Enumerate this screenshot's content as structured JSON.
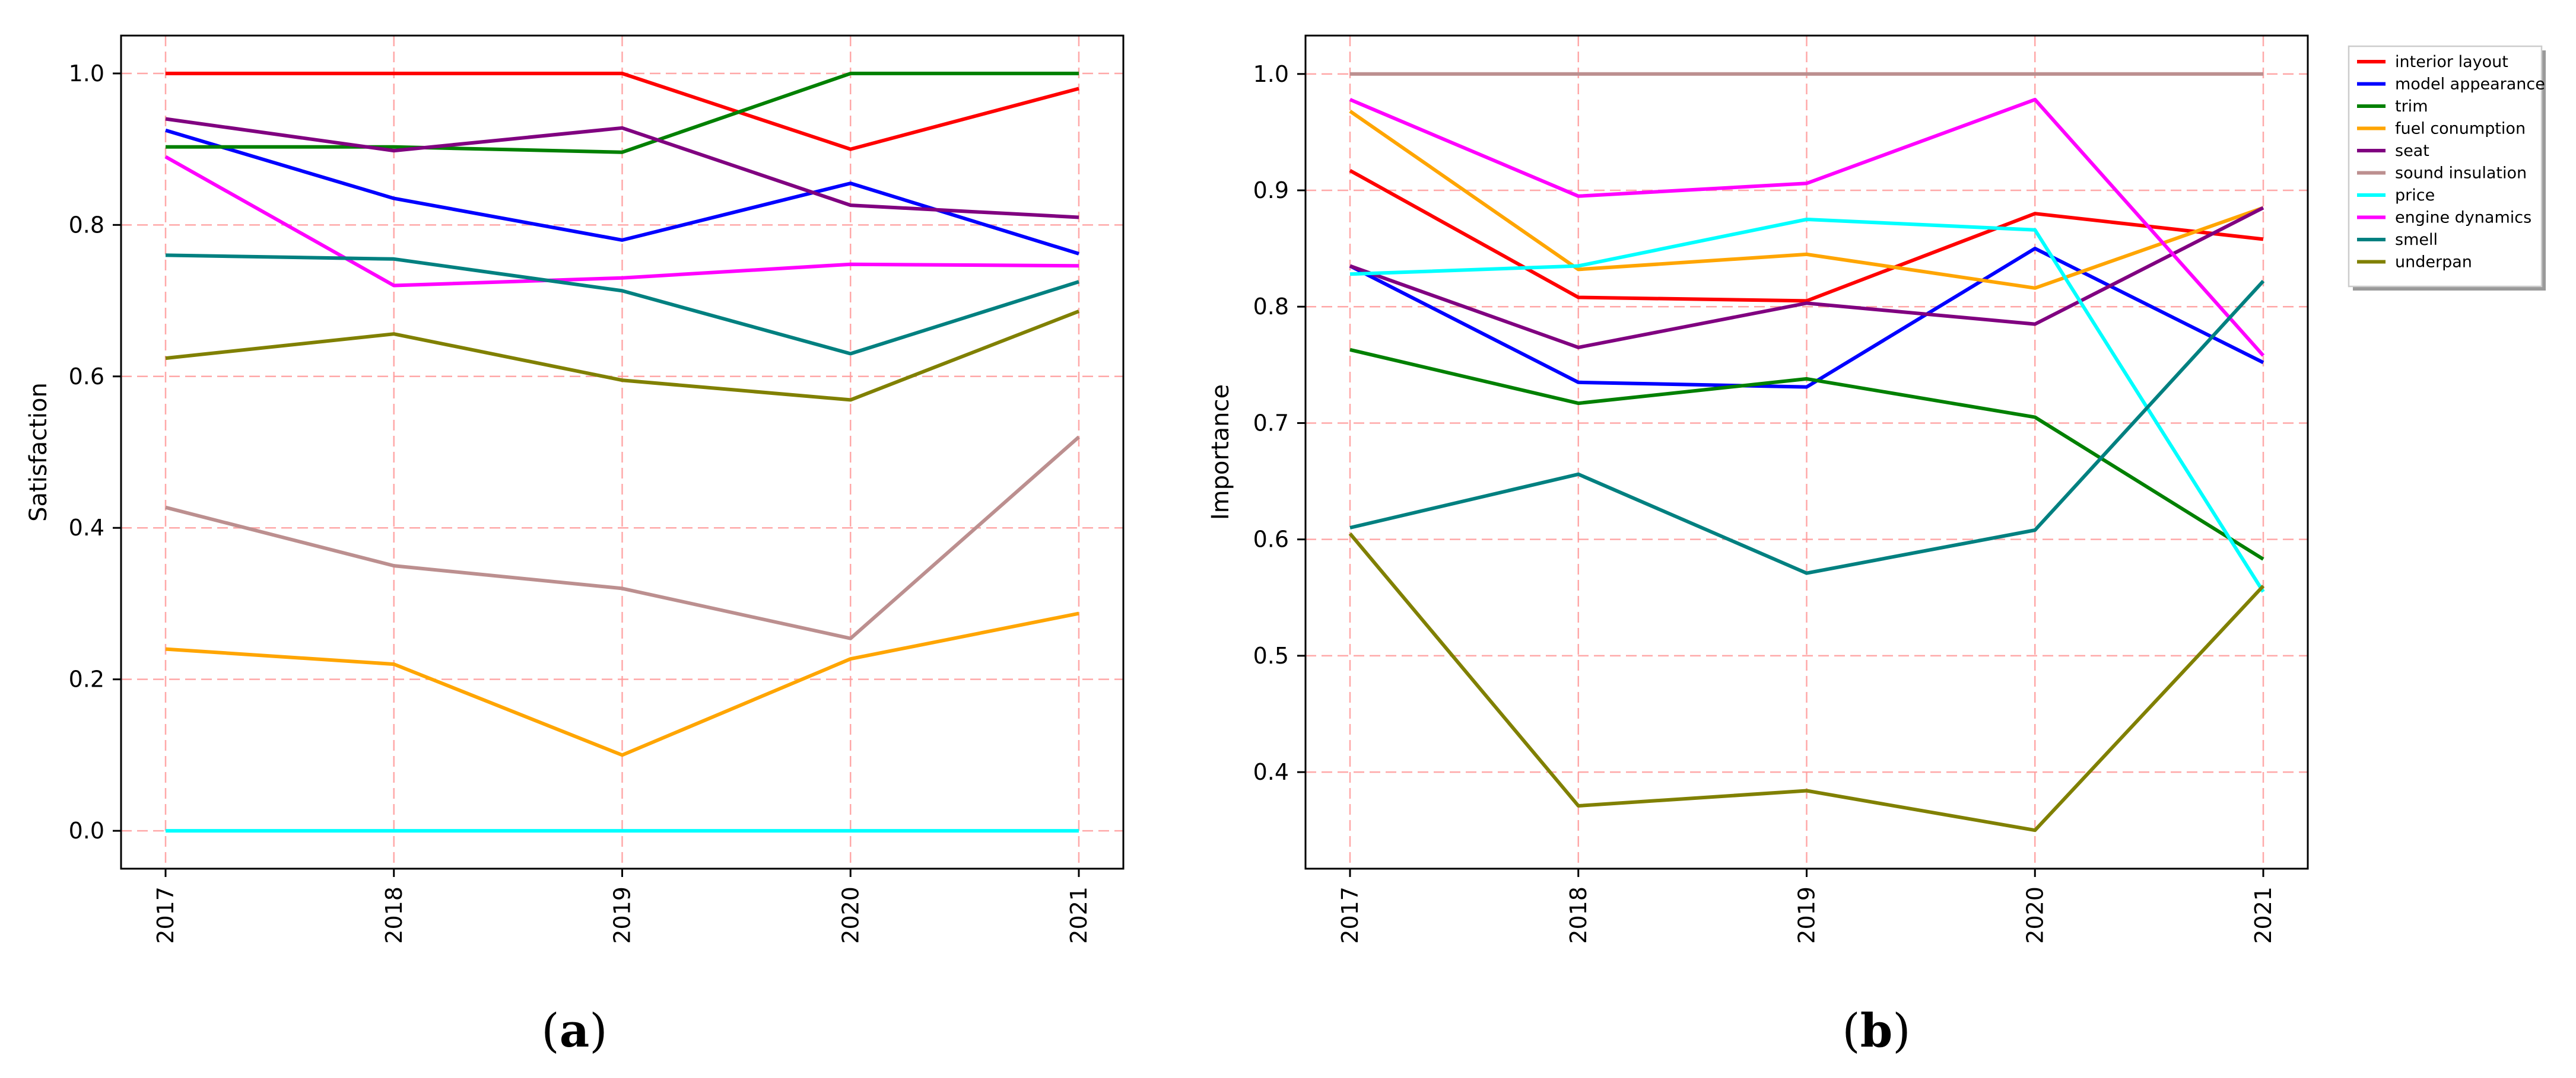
{
  "chart_data": [
    {
      "type": "line",
      "panel_label": "a",
      "panel_label_open": "(",
      "panel_label_close": ")",
      "title": "",
      "xlabel": "",
      "ylabel": "Satisfaction",
      "x": [
        "2017",
        "2018",
        "2019",
        "2020",
        "2021"
      ],
      "ylim": [
        -0.05,
        1.05
      ],
      "yticks": [
        0.0,
        0.2,
        0.4,
        0.6,
        0.8,
        1.0
      ],
      "ytick_labels": [
        "0.0",
        "0.2",
        "0.4",
        "0.6",
        "0.8",
        "1.0"
      ],
      "grid": true,
      "series": [
        {
          "name": "interior layout",
          "color": "#ff0000",
          "values": [
            1.0,
            1.0,
            1.0,
            0.9,
            0.98
          ]
        },
        {
          "name": "model appearance",
          "color": "#0000ff",
          "values": [
            0.925,
            0.835,
            0.78,
            0.855,
            0.762
          ]
        },
        {
          "name": "trim",
          "color": "#008000",
          "values": [
            0.903,
            0.903,
            0.896,
            1.0,
            1.0
          ]
        },
        {
          "name": "fuel conumption",
          "color": "#ffa500",
          "values": [
            0.24,
            0.22,
            0.1,
            0.227,
            0.287
          ]
        },
        {
          "name": "seat",
          "color": "#800080",
          "values": [
            0.94,
            0.898,
            0.928,
            0.826,
            0.81
          ]
        },
        {
          "name": "sound insulation",
          "color": "#bc8f8f",
          "values": [
            0.427,
            0.35,
            0.32,
            0.254,
            0.52
          ]
        },
        {
          "name": "price",
          "color": "#00ffff",
          "values": [
            0.0,
            0.0,
            0.0,
            0.0,
            0.0
          ]
        },
        {
          "name": "engine dynamics",
          "color": "#ff00ff",
          "values": [
            0.89,
            0.72,
            0.73,
            0.748,
            0.746
          ]
        },
        {
          "name": "smell",
          "color": "#008080",
          "values": [
            0.76,
            0.755,
            0.713,
            0.63,
            0.725
          ]
        },
        {
          "name": "underpan",
          "color": "#808000",
          "values": [
            0.624,
            0.656,
            0.595,
            0.569,
            0.686
          ]
        }
      ]
    },
    {
      "type": "line",
      "panel_label": "b",
      "panel_label_open": "(",
      "panel_label_close": ")",
      "title": "",
      "xlabel": "",
      "ylabel": "Importance",
      "x": [
        "2017",
        "2018",
        "2019",
        "2020",
        "2021"
      ],
      "ylim": [
        0.317,
        1.033
      ],
      "yticks": [
        0.4,
        0.5,
        0.6,
        0.7,
        0.8,
        0.9,
        1.0
      ],
      "ytick_labels": [
        "0.4",
        "0.5",
        "0.6",
        "0.7",
        "0.8",
        "0.9",
        "1.0"
      ],
      "grid": true,
      "legend_position": "outside-right",
      "series": [
        {
          "name": "interior layout",
          "color": "#ff0000",
          "values": [
            0.917,
            0.808,
            0.805,
            0.88,
            0.858
          ]
        },
        {
          "name": "model appearance",
          "color": "#0000ff",
          "values": [
            0.835,
            0.735,
            0.731,
            0.85,
            0.752
          ]
        },
        {
          "name": "trim",
          "color": "#008000",
          "values": [
            0.763,
            0.717,
            0.738,
            0.705,
            0.583
          ]
        },
        {
          "name": "fuel conumption",
          "color": "#ffa500",
          "values": [
            0.968,
            0.832,
            0.845,
            0.816,
            0.885
          ]
        },
        {
          "name": "seat",
          "color": "#800080",
          "values": [
            0.835,
            0.765,
            0.803,
            0.785,
            0.885
          ]
        },
        {
          "name": "sound insulation",
          "color": "#bc8f8f",
          "values": [
            1.0,
            1.0,
            1.0,
            1.0,
            1.0
          ]
        },
        {
          "name": "price",
          "color": "#00ffff",
          "values": [
            0.828,
            0.835,
            0.875,
            0.866,
            0.555
          ]
        },
        {
          "name": "engine dynamics",
          "color": "#ff00ff",
          "values": [
            0.978,
            0.895,
            0.906,
            0.978,
            0.758
          ]
        },
        {
          "name": "smell",
          "color": "#008080",
          "values": [
            0.61,
            0.656,
            0.571,
            0.608,
            0.822
          ]
        },
        {
          "name": "underpan",
          "color": "#808000",
          "values": [
            0.605,
            0.371,
            0.384,
            0.35,
            0.56
          ]
        }
      ]
    }
  ]
}
